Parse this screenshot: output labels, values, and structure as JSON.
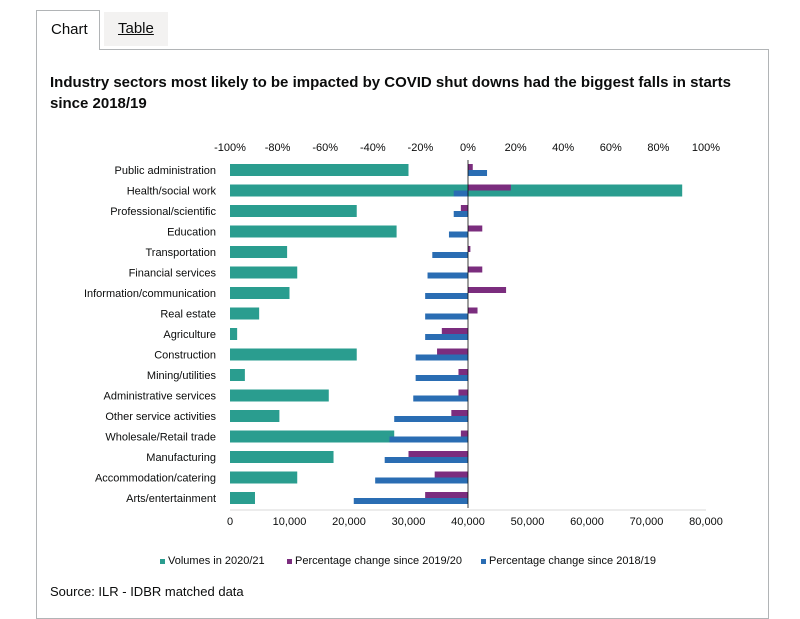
{
  "tabs": [
    {
      "label": "Chart",
      "active": true
    },
    {
      "label": "Table",
      "active": false
    }
  ],
  "source": "Source: ILR - IDBR matched data",
  "colors": {
    "volumes": "#2a9d8f",
    "pct_2019_20": "#7b2d7e",
    "pct_2018_19": "#2a6db3"
  },
  "chart_data": {
    "type": "bar",
    "orientation": "horizontal",
    "title": "Industry sectors most likely to be impacted by COVID shut downs had the biggest falls in starts since 2018/19",
    "categories": [
      "Public administration",
      "Health/social work",
      "Professional/scientific",
      "Education",
      "Transportation",
      "Financial services",
      "Information/communication",
      "Real estate",
      "Agriculture",
      "Construction",
      "Mining/utilities",
      "Administrative services",
      "Other service activities",
      "Wholesale/Retail trade",
      "Manufacturing",
      "Accommodation/catering",
      "Arts/entertainment"
    ],
    "series": [
      {
        "name": "Volumes in 2020/21",
        "axis": "bottom",
        "values": [
          30000,
          76000,
          21300,
          28000,
          9600,
          11300,
          10000,
          4900,
          1200,
          21300,
          2500,
          16600,
          8300,
          27600,
          17400,
          11300,
          4200
        ]
      },
      {
        "name": "Percentage change since 2019/20",
        "axis": "top",
        "values": [
          2,
          18,
          -3,
          6,
          1,
          6,
          16,
          4,
          -11,
          -13,
          -4,
          -4,
          -7,
          -3,
          -25,
          -14,
          -18
        ]
      },
      {
        "name": "Percentage change since 2018/19",
        "axis": "top",
        "values": [
          8,
          -6,
          -6,
          -8,
          -15,
          -17,
          -18,
          -18,
          -18,
          -22,
          -22,
          -23,
          -31,
          -33,
          -35,
          -39,
          -48
        ]
      }
    ],
    "x_bottom": {
      "range": [
        0,
        80000
      ],
      "ticks": [
        "0",
        "10,000",
        "20,000",
        "30,000",
        "40,000",
        "50,000",
        "60,000",
        "70,000",
        "80,000"
      ]
    },
    "x_top": {
      "range": [
        -100,
        100
      ],
      "ticks": [
        "-100%",
        "-80%",
        "-60%",
        "-40%",
        "-20%",
        "0%",
        "20%",
        "40%",
        "60%",
        "80%",
        "100%"
      ]
    },
    "legend": [
      "Volumes in 2020/21",
      "Percentage change since 2019/20",
      "Percentage change since 2018/19"
    ],
    "legend_position": "bottom",
    "grid": false
  }
}
